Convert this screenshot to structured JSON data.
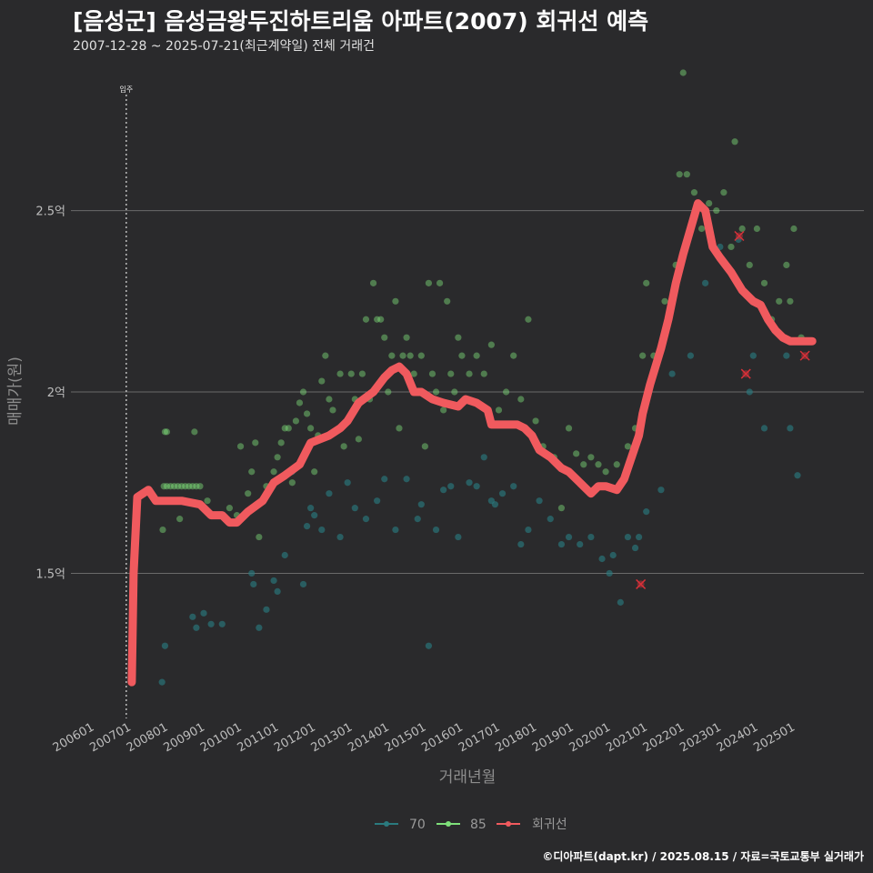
{
  "header": {
    "title": "[음성군] 음성금왕두진하트리움 아파트(2007) 회귀선 예측",
    "subtitle": "2007-12-28 ~ 2025-07-21(최근계약일) 전체 거래건"
  },
  "footer": {
    "source": "©디아파트(dapt.kr) / 2025.08.15 / 자료=국토교통부 실거래가"
  },
  "colors": {
    "series_70": "#2a7a7e",
    "series_85": "#7ee07a",
    "regression": "#f05a5e",
    "background": "#2a2a2c"
  },
  "chart_data": {
    "type": "scatter",
    "title": "[음성군] 음성금왕두진하트리움 아파트(2007) 회귀선 예측",
    "xlabel": "거래년월",
    "ylabel": "매매가(원)",
    "x_unit": "decimal year",
    "xlim": [
      2005.5,
      2027.0
    ],
    "ylim": [
      1.1,
      2.88
    ],
    "y_ticks": [
      1.5,
      2.0,
      2.5
    ],
    "y_tick_labels": [
      "1.5억",
      "2억",
      "2.5억"
    ],
    "x_ticks": [
      2006,
      2007,
      2008,
      2009,
      2010,
      2011,
      2012,
      2013,
      2014,
      2015,
      2016,
      2017,
      2018,
      2019,
      2020,
      2021,
      2022,
      2023,
      2024,
      2025
    ],
    "x_tick_labels": [
      "200601",
      "200701",
      "200801",
      "200901",
      "201001",
      "201101",
      "201201",
      "201301",
      "201401",
      "201501",
      "201601",
      "201701",
      "201801",
      "201901",
      "202001",
      "202101",
      "202201",
      "202301",
      "202401",
      "202501"
    ],
    "event_line": {
      "x": 2007.0,
      "label": "입주"
    },
    "legend": [
      {
        "key": "70",
        "label": "70"
      },
      {
        "key": "85",
        "label": "85"
      },
      {
        "key": "reg",
        "label": "회귀선"
      }
    ],
    "series": [
      {
        "name": "70",
        "points": [
          [
            2007.97,
            1.2
          ],
          [
            2008.05,
            1.3
          ],
          [
            2008.8,
            1.38
          ],
          [
            2008.9,
            1.35
          ],
          [
            2009.1,
            1.39
          ],
          [
            2009.3,
            1.36
          ],
          [
            2009.6,
            1.36
          ],
          [
            2010.4,
            1.5
          ],
          [
            2010.45,
            1.47
          ],
          [
            2010.6,
            1.35
          ],
          [
            2010.8,
            1.4
          ],
          [
            2011.0,
            1.48
          ],
          [
            2011.1,
            1.45
          ],
          [
            2011.3,
            1.55
          ],
          [
            2011.5,
            1.78
          ],
          [
            2011.8,
            1.47
          ],
          [
            2011.9,
            1.63
          ],
          [
            2012.0,
            1.68
          ],
          [
            2012.1,
            1.66
          ],
          [
            2012.3,
            1.62
          ],
          [
            2012.5,
            1.72
          ],
          [
            2012.8,
            1.6
          ],
          [
            2013.0,
            1.75
          ],
          [
            2013.2,
            1.68
          ],
          [
            2013.5,
            1.65
          ],
          [
            2013.8,
            1.7
          ],
          [
            2014.0,
            1.76
          ],
          [
            2014.3,
            1.62
          ],
          [
            2014.6,
            1.76
          ],
          [
            2014.9,
            1.65
          ],
          [
            2015.0,
            1.69
          ],
          [
            2015.2,
            1.3
          ],
          [
            2015.4,
            1.62
          ],
          [
            2015.6,
            1.73
          ],
          [
            2015.8,
            1.74
          ],
          [
            2016.0,
            1.6
          ],
          [
            2016.3,
            1.75
          ],
          [
            2016.5,
            1.74
          ],
          [
            2016.7,
            1.82
          ],
          [
            2016.9,
            1.7
          ],
          [
            2017.0,
            1.69
          ],
          [
            2017.2,
            1.72
          ],
          [
            2017.5,
            1.74
          ],
          [
            2017.7,
            1.58
          ],
          [
            2017.9,
            1.62
          ],
          [
            2018.2,
            1.7
          ],
          [
            2018.5,
            1.65
          ],
          [
            2018.8,
            1.58
          ],
          [
            2019.0,
            1.6
          ],
          [
            2019.3,
            1.58
          ],
          [
            2019.6,
            1.6
          ],
          [
            2019.9,
            1.54
          ],
          [
            2020.1,
            1.5
          ],
          [
            2020.2,
            1.55
          ],
          [
            2020.4,
            1.42
          ],
          [
            2020.6,
            1.6
          ],
          [
            2020.8,
            1.57
          ],
          [
            2020.9,
            1.6
          ],
          [
            2021.1,
            1.67
          ],
          [
            2021.5,
            1.73
          ],
          [
            2021.8,
            2.05
          ],
          [
            2022.3,
            2.1
          ],
          [
            2022.7,
            2.3
          ],
          [
            2023.1,
            2.4
          ],
          [
            2023.6,
            2.42
          ],
          [
            2023.9,
            2.0
          ],
          [
            2024.0,
            2.1
          ],
          [
            2024.3,
            1.9
          ],
          [
            2024.9,
            2.1
          ],
          [
            2025.0,
            1.9
          ],
          [
            2025.2,
            1.77
          ]
        ]
      },
      {
        "name": "85",
        "points": [
          [
            2007.99,
            1.62
          ],
          [
            2008.02,
            1.74
          ],
          [
            2008.05,
            1.89
          ],
          [
            2008.1,
            1.89
          ],
          [
            2008.1,
            1.74
          ],
          [
            2008.2,
            1.74
          ],
          [
            2008.3,
            1.74
          ],
          [
            2008.4,
            1.74
          ],
          [
            2008.45,
            1.65
          ],
          [
            2008.5,
            1.74
          ],
          [
            2008.6,
            1.74
          ],
          [
            2008.7,
            1.74
          ],
          [
            2008.8,
            1.74
          ],
          [
            2008.9,
            1.74
          ],
          [
            2009.0,
            1.74
          ],
          [
            2008.85,
            1.89
          ],
          [
            2009.2,
            1.7
          ],
          [
            2009.4,
            1.66
          ],
          [
            2009.5,
            1.66
          ],
          [
            2009.8,
            1.68
          ],
          [
            2010.0,
            1.66
          ],
          [
            2010.1,
            1.85
          ],
          [
            2010.3,
            1.72
          ],
          [
            2010.4,
            1.78
          ],
          [
            2010.5,
            1.86
          ],
          [
            2010.6,
            1.6
          ],
          [
            2010.8,
            1.74
          ],
          [
            2011.0,
            1.78
          ],
          [
            2011.1,
            1.82
          ],
          [
            2011.2,
            1.86
          ],
          [
            2011.3,
            1.9
          ],
          [
            2011.4,
            1.9
          ],
          [
            2011.5,
            1.75
          ],
          [
            2011.6,
            1.92
          ],
          [
            2011.7,
            1.97
          ],
          [
            2011.8,
            2.0
          ],
          [
            2011.9,
            1.94
          ],
          [
            2012.0,
            1.9
          ],
          [
            2012.1,
            1.78
          ],
          [
            2012.2,
            1.88
          ],
          [
            2012.3,
            2.03
          ],
          [
            2012.4,
            2.1
          ],
          [
            2012.5,
            1.98
          ],
          [
            2012.6,
            1.95
          ],
          [
            2012.8,
            2.05
          ],
          [
            2012.9,
            1.85
          ],
          [
            2013.0,
            1.92
          ],
          [
            2013.1,
            2.05
          ],
          [
            2013.2,
            1.98
          ],
          [
            2013.3,
            1.87
          ],
          [
            2013.4,
            2.05
          ],
          [
            2013.5,
            2.2
          ],
          [
            2013.6,
            1.98
          ],
          [
            2013.7,
            2.3
          ],
          [
            2013.8,
            2.2
          ],
          [
            2013.9,
            2.2
          ],
          [
            2014.0,
            2.15
          ],
          [
            2014.1,
            2.0
          ],
          [
            2014.2,
            2.1
          ],
          [
            2014.3,
            2.25
          ],
          [
            2014.4,
            1.9
          ],
          [
            2014.5,
            2.1
          ],
          [
            2014.6,
            2.15
          ],
          [
            2014.7,
            2.1
          ],
          [
            2014.8,
            2.05
          ],
          [
            2014.9,
            2.0
          ],
          [
            2015.0,
            2.1
          ],
          [
            2015.1,
            1.85
          ],
          [
            2015.2,
            2.3
          ],
          [
            2015.3,
            2.05
          ],
          [
            2015.4,
            2.0
          ],
          [
            2015.5,
            2.3
          ],
          [
            2015.6,
            1.95
          ],
          [
            2015.7,
            2.25
          ],
          [
            2015.8,
            2.05
          ],
          [
            2015.9,
            2.0
          ],
          [
            2016.0,
            2.15
          ],
          [
            2016.1,
            2.1
          ],
          [
            2016.2,
            1.98
          ],
          [
            2016.3,
            2.05
          ],
          [
            2016.5,
            2.1
          ],
          [
            2016.7,
            2.05
          ],
          [
            2016.9,
            2.13
          ],
          [
            2017.1,
            1.95
          ],
          [
            2017.3,
            2.0
          ],
          [
            2017.5,
            2.1
          ],
          [
            2017.7,
            1.98
          ],
          [
            2017.9,
            2.2
          ],
          [
            2018.1,
            1.92
          ],
          [
            2018.3,
            1.85
          ],
          [
            2018.6,
            1.82
          ],
          [
            2018.8,
            1.68
          ],
          [
            2019.0,
            1.9
          ],
          [
            2019.2,
            1.83
          ],
          [
            2019.4,
            1.8
          ],
          [
            2019.6,
            1.82
          ],
          [
            2019.8,
            1.8
          ],
          [
            2020.0,
            1.78
          ],
          [
            2020.3,
            1.8
          ],
          [
            2020.6,
            1.85
          ],
          [
            2020.8,
            1.9
          ],
          [
            2021.0,
            2.1
          ],
          [
            2021.1,
            2.3
          ],
          [
            2021.3,
            2.1
          ],
          [
            2021.6,
            2.25
          ],
          [
            2021.9,
            2.35
          ],
          [
            2022.0,
            2.6
          ],
          [
            2022.1,
            2.88
          ],
          [
            2022.2,
            2.6
          ],
          [
            2022.4,
            2.55
          ],
          [
            2022.6,
            2.45
          ],
          [
            2022.8,
            2.52
          ],
          [
            2023.0,
            2.5
          ],
          [
            2023.2,
            2.55
          ],
          [
            2023.4,
            2.4
          ],
          [
            2023.5,
            2.69
          ],
          [
            2023.7,
            2.45
          ],
          [
            2023.9,
            2.35
          ],
          [
            2024.1,
            2.45
          ],
          [
            2024.3,
            2.3
          ],
          [
            2024.5,
            2.2
          ],
          [
            2024.7,
            2.25
          ],
          [
            2024.9,
            2.35
          ],
          [
            2025.0,
            2.25
          ],
          [
            2025.1,
            2.45
          ],
          [
            2025.3,
            2.15
          ]
        ]
      },
      {
        "name": "회귀선",
        "points": [
          [
            2007.15,
            1.2
          ],
          [
            2007.2,
            1.5
          ],
          [
            2007.3,
            1.71
          ],
          [
            2007.6,
            1.73
          ],
          [
            2007.8,
            1.7
          ],
          [
            2008.5,
            1.7
          ],
          [
            2009.0,
            1.69
          ],
          [
            2009.3,
            1.66
          ],
          [
            2009.6,
            1.66
          ],
          [
            2009.8,
            1.64
          ],
          [
            2010.0,
            1.64
          ],
          [
            2010.3,
            1.67
          ],
          [
            2010.7,
            1.7
          ],
          [
            2011.0,
            1.75
          ],
          [
            2011.3,
            1.77
          ],
          [
            2011.7,
            1.8
          ],
          [
            2012.0,
            1.86
          ],
          [
            2012.5,
            1.88
          ],
          [
            2012.8,
            1.9
          ],
          [
            2013.0,
            1.92
          ],
          [
            2013.3,
            1.97
          ],
          [
            2013.7,
            2.0
          ],
          [
            2014.0,
            2.04
          ],
          [
            2014.2,
            2.06
          ],
          [
            2014.4,
            2.07
          ],
          [
            2014.6,
            2.05
          ],
          [
            2014.8,
            2.0
          ],
          [
            2015.0,
            2.0
          ],
          [
            2015.3,
            1.98
          ],
          [
            2015.6,
            1.97
          ],
          [
            2016.0,
            1.96
          ],
          [
            2016.2,
            1.98
          ],
          [
            2016.5,
            1.97
          ],
          [
            2016.8,
            1.95
          ],
          [
            2016.9,
            1.91
          ],
          [
            2017.2,
            1.91
          ],
          [
            2017.6,
            1.91
          ],
          [
            2017.8,
            1.9
          ],
          [
            2018.0,
            1.88
          ],
          [
            2018.2,
            1.84
          ],
          [
            2018.5,
            1.82
          ],
          [
            2018.8,
            1.79
          ],
          [
            2019.0,
            1.78
          ],
          [
            2019.3,
            1.75
          ],
          [
            2019.6,
            1.72
          ],
          [
            2019.8,
            1.74
          ],
          [
            2020.0,
            1.74
          ],
          [
            2020.3,
            1.73
          ],
          [
            2020.5,
            1.76
          ],
          [
            2020.7,
            1.82
          ],
          [
            2020.9,
            1.88
          ],
          [
            2021.0,
            1.94
          ],
          [
            2021.2,
            2.02
          ],
          [
            2021.5,
            2.12
          ],
          [
            2021.7,
            2.2
          ],
          [
            2021.9,
            2.3
          ],
          [
            2022.1,
            2.38
          ],
          [
            2022.3,
            2.45
          ],
          [
            2022.5,
            2.52
          ],
          [
            2022.7,
            2.5
          ],
          [
            2022.9,
            2.4
          ],
          [
            2023.1,
            2.37
          ],
          [
            2023.4,
            2.33
          ],
          [
            2023.7,
            2.28
          ],
          [
            2024.0,
            2.25
          ],
          [
            2024.2,
            2.24
          ],
          [
            2024.4,
            2.2
          ],
          [
            2024.6,
            2.17
          ],
          [
            2024.8,
            2.15
          ],
          [
            2025.0,
            2.14
          ],
          [
            2025.6,
            2.14
          ]
        ]
      }
    ],
    "outliers": [
      [
        2020.95,
        1.47
      ],
      [
        2023.62,
        2.43
      ],
      [
        2023.8,
        2.05
      ],
      [
        2025.4,
        2.1
      ]
    ]
  }
}
